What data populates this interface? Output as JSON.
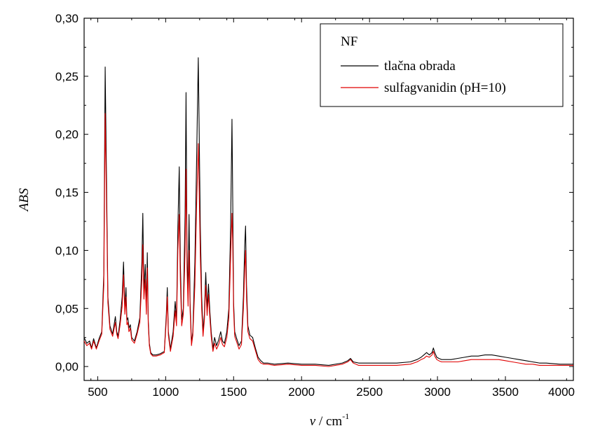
{
  "chart_data": {
    "type": "line",
    "xlabel_symbol": "ν",
    "xlabel_unit": " / cm",
    "xlabel_exp": "-1",
    "ylabel": "ABS",
    "xlim": [
      400,
      4000
    ],
    "ylim": [
      -0.012,
      0.3
    ],
    "xticks": [
      500,
      1000,
      1500,
      2000,
      2500,
      3000,
      3500,
      4000
    ],
    "xtick_labels": [
      "500",
      "1000",
      "1500",
      "2000",
      "2500",
      "3000",
      "3500",
      "4000"
    ],
    "yticks": [
      0.0,
      0.05,
      0.1,
      0.15,
      0.2,
      0.25,
      0.3
    ],
    "ytick_labels": [
      "0,00",
      "0,05",
      "0,10",
      "0,15",
      "0,20",
      "0,25",
      "0,30"
    ],
    "legend": {
      "title": "NF",
      "placement": "top-right",
      "entries": [
        "tlačna obrada",
        "sulfagvanidin (pH=10)"
      ]
    },
    "series": [
      {
        "name": "tlačna obrada",
        "color": "#000000",
        "x": [
          400,
          420,
          440,
          455,
          470,
          490,
          510,
          530,
          545,
          555,
          565,
          575,
          590,
          610,
          630,
          640,
          650,
          665,
          680,
          690,
          700,
          708,
          715,
          722,
          730,
          740,
          750,
          770,
          790,
          810,
          825,
          832,
          840,
          850,
          858,
          865,
          872,
          880,
          890,
          905,
          930,
          960,
          990,
          1005,
          1012,
          1020,
          1035,
          1055,
          1070,
          1080,
          1090,
          1100,
          1108,
          1118,
          1130,
          1143,
          1150,
          1157,
          1165,
          1172,
          1180,
          1190,
          1200,
          1215,
          1228,
          1240,
          1247,
          1255,
          1265,
          1275,
          1285,
          1295,
          1305,
          1315,
          1325,
          1335,
          1348,
          1360,
          1375,
          1390,
          1405,
          1418,
          1432,
          1450,
          1465,
          1478,
          1488,
          1493,
          1500,
          1508,
          1520,
          1540,
          1558,
          1572,
          1582,
          1588,
          1595,
          1605,
          1620,
          1640,
          1660,
          1680,
          1700,
          1720,
          1750,
          1800,
          1900,
          2000,
          2100,
          2200,
          2300,
          2340,
          2360,
          2380,
          2420,
          2500,
          2600,
          2700,
          2800,
          2850,
          2880,
          2900,
          2920,
          2940,
          2960,
          2970,
          2980,
          2995,
          3010,
          3030,
          3060,
          3100,
          3150,
          3200,
          3250,
          3300,
          3350,
          3400,
          3450,
          3500,
          3550,
          3600,
          3650,
          3700,
          3750,
          3800,
          3900,
          4000
        ],
        "y": [
          0.025,
          0.02,
          0.022,
          0.016,
          0.024,
          0.016,
          0.024,
          0.03,
          0.08,
          0.258,
          0.16,
          0.06,
          0.035,
          0.028,
          0.043,
          0.03,
          0.026,
          0.04,
          0.06,
          0.09,
          0.05,
          0.068,
          0.04,
          0.042,
          0.033,
          0.036,
          0.025,
          0.022,
          0.03,
          0.042,
          0.09,
          0.132,
          0.065,
          0.088,
          0.05,
          0.098,
          0.04,
          0.02,
          0.012,
          0.01,
          0.01,
          0.011,
          0.013,
          0.045,
          0.068,
          0.03,
          0.015,
          0.03,
          0.056,
          0.04,
          0.12,
          0.172,
          0.09,
          0.04,
          0.05,
          0.13,
          0.236,
          0.1,
          0.06,
          0.131,
          0.055,
          0.02,
          0.03,
          0.09,
          0.18,
          0.266,
          0.2,
          0.12,
          0.06,
          0.03,
          0.045,
          0.081,
          0.05,
          0.071,
          0.048,
          0.03,
          0.015,
          0.025,
          0.018,
          0.023,
          0.03,
          0.022,
          0.02,
          0.03,
          0.05,
          0.12,
          0.213,
          0.15,
          0.055,
          0.03,
          0.025,
          0.018,
          0.022,
          0.06,
          0.105,
          0.121,
          0.07,
          0.035,
          0.027,
          0.025,
          0.016,
          0.008,
          0.005,
          0.003,
          0.003,
          0.002,
          0.003,
          0.002,
          0.002,
          0.001,
          0.003,
          0.005,
          0.007,
          0.004,
          0.003,
          0.003,
          0.003,
          0.003,
          0.004,
          0.006,
          0.008,
          0.01,
          0.012,
          0.01,
          0.012,
          0.016,
          0.012,
          0.008,
          0.007,
          0.006,
          0.006,
          0.006,
          0.007,
          0.008,
          0.009,
          0.009,
          0.01,
          0.01,
          0.009,
          0.008,
          0.007,
          0.006,
          0.005,
          0.004,
          0.003,
          0.003,
          0.002,
          0.002
        ]
      },
      {
        "name": "sulfagvanidin (pH=10)",
        "color": "#e00000",
        "x": [
          400,
          420,
          440,
          455,
          470,
          490,
          510,
          530,
          545,
          555,
          565,
          575,
          590,
          610,
          630,
          640,
          650,
          665,
          680,
          690,
          700,
          708,
          715,
          722,
          730,
          740,
          750,
          770,
          790,
          810,
          825,
          832,
          840,
          850,
          858,
          865,
          872,
          880,
          890,
          905,
          930,
          960,
          990,
          1005,
          1012,
          1020,
          1035,
          1055,
          1070,
          1080,
          1090,
          1100,
          1108,
          1118,
          1130,
          1143,
          1150,
          1157,
          1165,
          1172,
          1180,
          1190,
          1200,
          1215,
          1228,
          1240,
          1247,
          1255,
          1265,
          1275,
          1285,
          1295,
          1305,
          1315,
          1325,
          1335,
          1348,
          1360,
          1375,
          1390,
          1405,
          1418,
          1432,
          1450,
          1465,
          1478,
          1488,
          1493,
          1500,
          1508,
          1520,
          1540,
          1558,
          1572,
          1582,
          1588,
          1595,
          1605,
          1620,
          1640,
          1660,
          1680,
          1700,
          1720,
          1750,
          1800,
          1900,
          2000,
          2100,
          2200,
          2300,
          2340,
          2360,
          2380,
          2420,
          2500,
          2600,
          2700,
          2800,
          2850,
          2880,
          2900,
          2920,
          2940,
          2960,
          2970,
          2980,
          2995,
          3010,
          3030,
          3060,
          3100,
          3150,
          3200,
          3250,
          3300,
          3350,
          3400,
          3450,
          3500,
          3550,
          3600,
          3650,
          3700,
          3750,
          3800,
          3900,
          4000
        ],
        "y": [
          0.022,
          0.018,
          0.02,
          0.015,
          0.022,
          0.015,
          0.022,
          0.028,
          0.07,
          0.218,
          0.14,
          0.055,
          0.032,
          0.026,
          0.038,
          0.028,
          0.024,
          0.036,
          0.052,
          0.079,
          0.045,
          0.06,
          0.036,
          0.038,
          0.03,
          0.033,
          0.023,
          0.02,
          0.028,
          0.038,
          0.075,
          0.105,
          0.058,
          0.075,
          0.045,
          0.085,
          0.036,
          0.018,
          0.011,
          0.009,
          0.009,
          0.01,
          0.012,
          0.04,
          0.06,
          0.027,
          0.013,
          0.026,
          0.048,
          0.035,
          0.1,
          0.131,
          0.075,
          0.035,
          0.045,
          0.1,
          0.17,
          0.085,
          0.052,
          0.1,
          0.048,
          0.018,
          0.027,
          0.07,
          0.14,
          0.192,
          0.15,
          0.095,
          0.05,
          0.026,
          0.04,
          0.07,
          0.044,
          0.062,
          0.042,
          0.026,
          0.013,
          0.02,
          0.015,
          0.019,
          0.025,
          0.019,
          0.017,
          0.025,
          0.042,
          0.095,
          0.132,
          0.11,
          0.048,
          0.026,
          0.022,
          0.015,
          0.019,
          0.05,
          0.085,
          0.1,
          0.06,
          0.03,
          0.024,
          0.022,
          0.014,
          0.006,
          0.003,
          0.002,
          0.002,
          0.001,
          0.002,
          0.001,
          0.001,
          0.0,
          0.002,
          0.004,
          0.006,
          0.003,
          0.001,
          0.001,
          0.001,
          0.001,
          0.002,
          0.004,
          0.006,
          0.007,
          0.009,
          0.008,
          0.01,
          0.013,
          0.009,
          0.006,
          0.005,
          0.004,
          0.004,
          0.004,
          0.004,
          0.005,
          0.006,
          0.006,
          0.006,
          0.006,
          0.006,
          0.005,
          0.004,
          0.003,
          0.002,
          0.002,
          0.001,
          0.001,
          0.001,
          0.001
        ]
      }
    ]
  }
}
